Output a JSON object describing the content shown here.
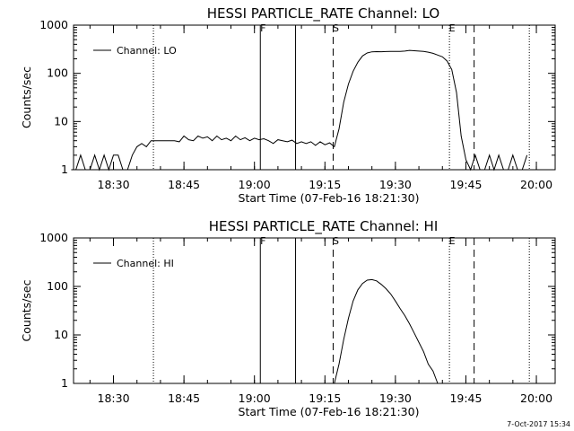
{
  "footer_timestamp": "7-Oct-2017 15:34",
  "chart_data": [
    {
      "type": "line",
      "title": "HESSI PARTICLE_RATE Channel: LO",
      "xlabel": "Start Time (07-Feb-16 18:21:30)",
      "ylabel": "Counts/sec",
      "yscale": "log",
      "ylim": [
        1,
        1000
      ],
      "yticks": [
        "1",
        "10",
        "100",
        "1000"
      ],
      "xlim_minutes": [
        "18:21:30",
        "20:04:00"
      ],
      "xticks": [
        "18:30",
        "18:45",
        "19:00",
        "19:15",
        "19:30",
        "19:45",
        "20:00"
      ],
      "legend_location": "upper-left",
      "series": [
        {
          "name": "Channel: LO",
          "x": [
            "18:21",
            "18:22",
            "18:23",
            "18:24",
            "18:25",
            "18:26",
            "18:27",
            "18:28",
            "18:29",
            "18:30",
            "18:31",
            "18:32",
            "18:33",
            "18:34",
            "18:35",
            "18:36",
            "18:37",
            "18:38",
            "18:39",
            "18:40",
            "18:41",
            "18:42",
            "18:43",
            "18:44",
            "18:45",
            "18:46",
            "18:47",
            "18:48",
            "18:49",
            "18:50",
            "18:51",
            "18:52",
            "18:53",
            "18:54",
            "18:55",
            "18:56",
            "18:57",
            "18:58",
            "18:59",
            "19:00",
            "19:01",
            "19:02",
            "19:03",
            "19:04",
            "19:05",
            "19:06",
            "19:07",
            "19:08",
            "19:09",
            "19:10",
            "19:11",
            "19:12",
            "19:13",
            "19:14",
            "19:15",
            "19:16",
            "19:17",
            "19:18",
            "19:19",
            "19:20",
            "19:21",
            "19:22",
            "19:23",
            "19:24",
            "19:25",
            "19:26",
            "19:27",
            "19:28",
            "19:29",
            "19:30",
            "19:31",
            "19:32",
            "19:33",
            "19:34",
            "19:35",
            "19:36",
            "19:37",
            "19:38",
            "19:39",
            "19:40",
            "19:41",
            "19:42",
            "19:43",
            "19:44",
            "19:45",
            "19:46",
            "19:47",
            "19:48",
            "19:49",
            "19:50",
            "19:51",
            "19:52",
            "19:53",
            "19:54",
            "19:55",
            "19:56",
            "19:57",
            "19:58"
          ],
          "y": [
            1,
            1,
            2,
            1,
            1,
            2,
            1,
            2,
            1,
            2,
            2,
            1,
            1,
            2,
            3,
            3.5,
            3,
            4,
            4,
            4,
            4,
            4,
            4,
            3.8,
            5,
            4.2,
            4,
            5,
            4.5,
            4.8,
            4,
            5,
            4.2,
            4.5,
            4,
            5,
            4.2,
            4.6,
            4,
            4.5,
            4.2,
            4.4,
            4,
            3.5,
            4.2,
            4,
            3.8,
            4.1,
            3.5,
            3.8,
            3.5,
            3.8,
            3.2,
            3.8,
            3.3,
            3.6,
            3.0,
            7,
            25,
            60,
            110,
            170,
            230,
            265,
            280,
            282,
            281,
            283,
            284,
            285,
            286,
            290,
            300,
            295,
            290,
            285,
            275,
            260,
            240,
            220,
            180,
            120,
            40,
            5,
            1.6,
            1,
            2,
            1,
            1,
            2,
            1,
            2,
            1,
            1,
            2,
            1,
            1,
            2
          ]
        }
      ]
    },
    {
      "type": "line",
      "title": "HESSI PARTICLE_RATE Channel: HI",
      "xlabel": "Start Time (07-Feb-16 18:21:30)",
      "ylabel": "Counts/sec",
      "yscale": "log",
      "ylim": [
        1,
        1000
      ],
      "yticks": [
        "1",
        "10",
        "100",
        "1000"
      ],
      "xlim_minutes": [
        "18:21:30",
        "20:04:00"
      ],
      "xticks": [
        "18:30",
        "18:45",
        "19:00",
        "19:15",
        "19:30",
        "19:45",
        "20:00"
      ],
      "legend_location": "upper-left",
      "series": [
        {
          "name": "Channel: HI",
          "x": [
            "19:17",
            "19:18",
            "19:19",
            "19:20",
            "19:21",
            "19:22",
            "19:23",
            "19:24",
            "19:25",
            "19:26",
            "19:27",
            "19:28",
            "19:29",
            "19:30",
            "19:31",
            "19:32",
            "19:33",
            "19:34",
            "19:35",
            "19:36",
            "19:37",
            "19:38",
            "19:39"
          ],
          "y": [
            1,
            2.5,
            8,
            22,
            50,
            85,
            115,
            135,
            138,
            130,
            110,
            90,
            70,
            50,
            35,
            25,
            17,
            11,
            7,
            4.5,
            2.5,
            1.8,
            1.0
          ]
        }
      ]
    }
  ],
  "markers": [
    {
      "label": "F",
      "time": "19:01:15",
      "style": "solid"
    },
    {
      "label": "",
      "time": "19:08:45",
      "style": "solid"
    },
    {
      "label": "S",
      "time": "19:16:45",
      "style": "dashed"
    },
    {
      "label": "E",
      "time": "19:41:30",
      "style": "dotted"
    },
    {
      "label": "",
      "time": "19:46:45",
      "style": "dashed"
    },
    {
      "label": "",
      "time": "18:38:30",
      "style": "dotted"
    },
    {
      "label": "",
      "time": "19:58:30",
      "style": "dotted"
    }
  ]
}
